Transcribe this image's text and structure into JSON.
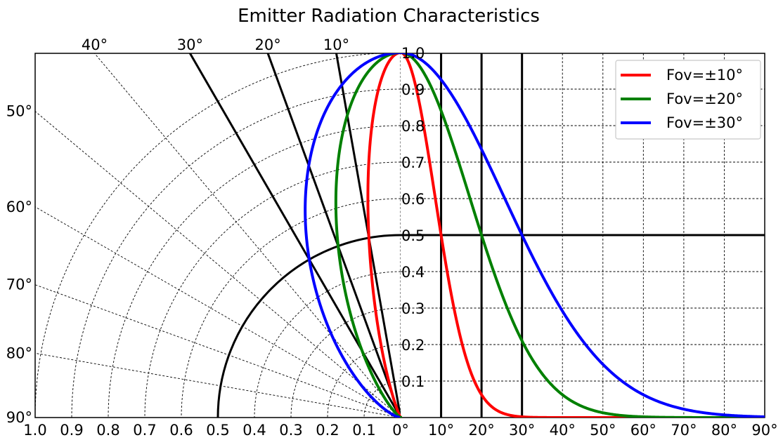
{
  "chart_data": {
    "type": "line",
    "title": "Emitter Radiation Characteristics",
    "polar_panel": {
      "radius_ticks": [
        "1.0",
        "0.9",
        "0.8",
        "0.7",
        "0.6",
        "0.5",
        "0.4",
        "0.3",
        "0.2",
        "0.1",
        "0°"
      ],
      "angle_ticks_top": [
        "40°",
        "30°",
        "20°",
        "10°"
      ],
      "angle_ticks_left": [
        "50°",
        "60°",
        "70°",
        "80°",
        "90°"
      ],
      "rays_deg": [
        10,
        20,
        30
      ],
      "half_power_radius": 0.5
    },
    "cartesian_panel": {
      "x_ticks": [
        "10°",
        "20°",
        "30°",
        "40°",
        "50°",
        "60°",
        "70°",
        "80°",
        "90°"
      ],
      "y_ticks": [
        "1.0",
        "0.9",
        "0.8",
        "0.7",
        "0.6",
        "0.5",
        "0.4",
        "0.3",
        "0.2",
        "0.1"
      ],
      "xlim": [
        0,
        90
      ],
      "ylim": [
        0,
        1
      ],
      "grid": true,
      "half_power_line": 0.5,
      "fov_markers_deg": [
        10,
        20,
        30
      ]
    },
    "series": [
      {
        "name": "Fov=±10°",
        "color": "#ff0000",
        "half_angle_deg": 10
      },
      {
        "name": "Fov=±20°",
        "color": "#008000",
        "half_angle_deg": 20
      },
      {
        "name": "Fov=±30°",
        "color": "#0000ff",
        "half_angle_deg": 30
      }
    ],
    "legend_position": "top-right"
  }
}
